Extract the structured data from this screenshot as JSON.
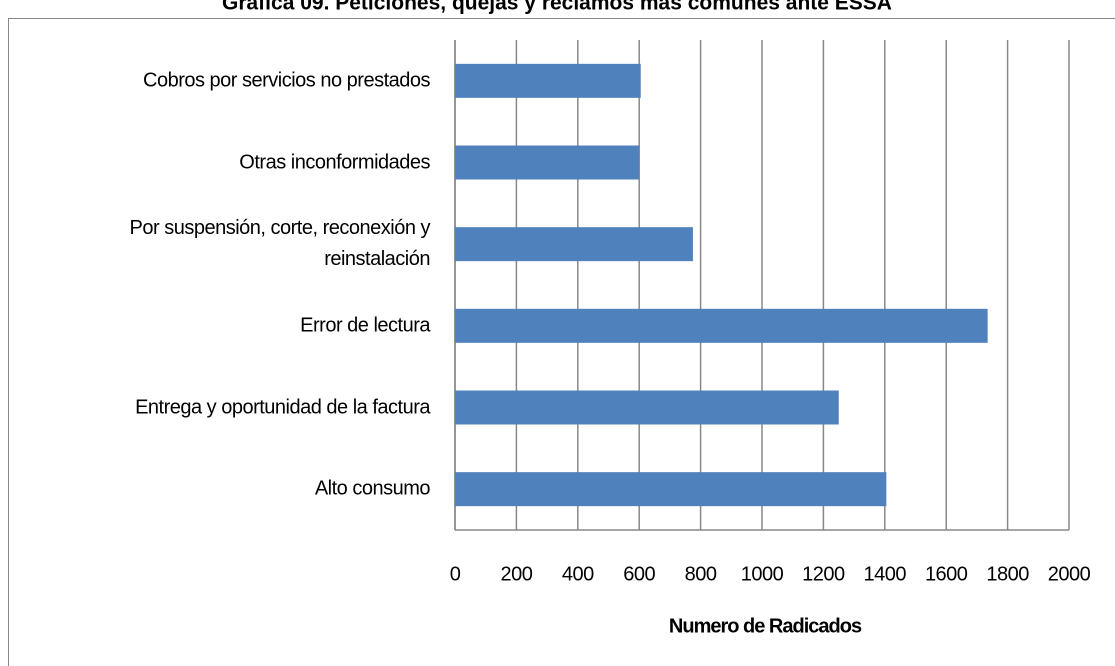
{
  "chart_data": {
    "type": "bar",
    "orientation": "horizontal",
    "title": "Gráfica 09. Peticiones, quejas y reclamos más comunes ante ESSA",
    "x_label": "Numero de Radicados",
    "categories": [
      "Cobros por servicios no prestados",
      "Otras inconformidades",
      "Por suspensión, corte, reconexión y reinstalación",
      "Error de lectura",
      "Entrega y oportunidad de la factura",
      "Alto consumo"
    ],
    "values": [
      605,
      600,
      775,
      1735,
      1250,
      1405
    ],
    "color": "#4f81bd",
    "xlim": [
      0,
      2000
    ],
    "xticks": [
      0,
      200,
      400,
      600,
      800,
      1000,
      1200,
      1400,
      1600,
      1800,
      2000
    ],
    "grid": true
  }
}
